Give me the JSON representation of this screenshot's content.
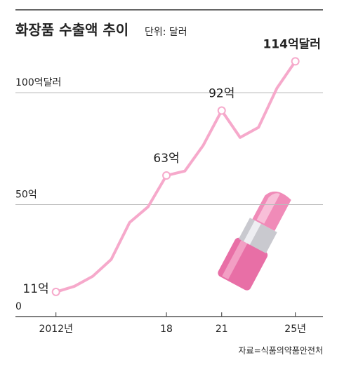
{
  "chart_data": {
    "type": "line",
    "title": "화장품 수출액 추이",
    "subtitle": "단위: 달러",
    "source": "자료=식품의약품안전처",
    "x": [
      2012,
      2013,
      2014,
      2015,
      2016,
      2017,
      2018,
      2019,
      2020,
      2021,
      2022,
      2023,
      2024,
      2025
    ],
    "values": [
      11,
      13.5,
      18,
      25.5,
      42,
      49,
      63,
      65,
      76.5,
      92,
      80,
      84.5,
      102,
      114
    ],
    "value_labels": [
      "11억",
      null,
      null,
      null,
      null,
      null,
      "63억",
      null,
      null,
      "92억",
      null,
      null,
      null,
      "114억달러"
    ],
    "color": "#f6a9cb",
    "xlim": [
      2009.8,
      2026.5
    ],
    "xticks": [
      {
        "value": 2012,
        "label": "2012년"
      },
      {
        "value": 2018,
        "label": "18"
      },
      {
        "value": 2021,
        "label": "21"
      },
      {
        "value": 2025,
        "label": "25년"
      }
    ],
    "ylim": [
      0,
      137
    ],
    "yticks": [
      0,
      {
        "value": 50,
        "label": "50억"
      },
      {
        "value": 100,
        "label": "100억달러"
      }
    ],
    "grid": true
  }
}
